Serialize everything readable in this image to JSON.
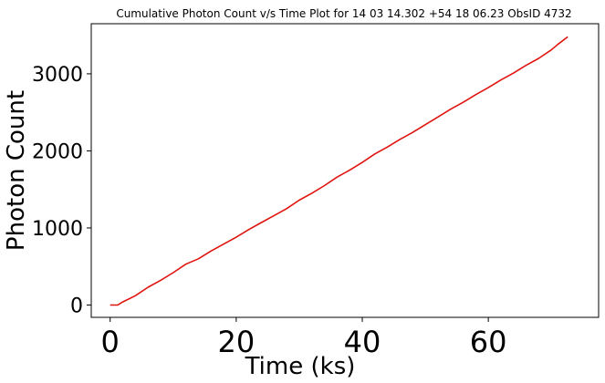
{
  "chart_data": {
    "type": "line",
    "title": "Cumulative Photon Count v/s Time Plot for 14 03 14.302 +54 18 06.23 ObsID 4732",
    "xlabel": "Time (ks)",
    "ylabel": "Photon Count",
    "xlim": [
      -3,
      77.5
    ],
    "ylim": [
      -160,
      3650
    ],
    "grid": false,
    "x_ticks": [
      0,
      20,
      40,
      60
    ],
    "x_tick_labels": [
      "0",
      "20",
      "40",
      "60"
    ],
    "y_ticks": [
      0,
      1000,
      2000,
      3000
    ],
    "y_tick_labels": [
      "0",
      "1000",
      "2000",
      "3000"
    ],
    "series": [
      {
        "color": "#e0140f",
        "x": [
          0,
          1.2,
          2,
          4,
          6,
          8,
          10,
          12,
          14,
          16,
          18,
          20,
          22,
          24,
          26,
          28,
          30,
          32,
          34,
          36,
          38,
          40,
          42,
          44,
          46,
          48,
          50,
          52,
          54,
          56,
          58,
          60,
          62,
          64,
          66,
          68,
          70,
          71,
          72.6
        ],
        "y": [
          0,
          0,
          40,
          120,
          230,
          320,
          420,
          530,
          600,
          700,
          790,
          880,
          980,
          1070,
          1160,
          1250,
          1360,
          1450,
          1550,
          1660,
          1750,
          1850,
          1960,
          2050,
          2150,
          2240,
          2340,
          2440,
          2540,
          2630,
          2730,
          2820,
          2920,
          3010,
          3110,
          3200,
          3310,
          3380,
          3480
        ]
      }
    ]
  }
}
